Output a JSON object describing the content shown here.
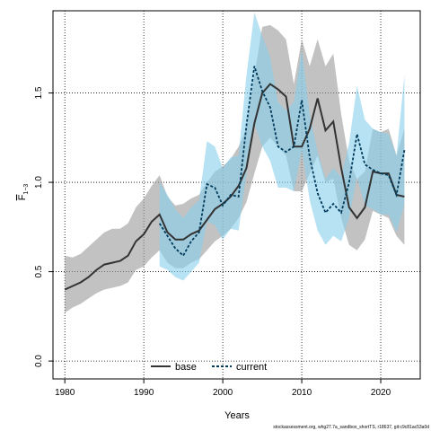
{
  "chart_data": {
    "type": "line",
    "xlabel": "Years",
    "ylabel_main": "F",
    "ylabel_sub": "1−3",
    "xlim": [
      1978.5,
      2025.0
    ],
    "ylim": [
      -0.1,
      1.96
    ],
    "x_ticks": [
      1980,
      1990,
      2000,
      2010,
      2020
    ],
    "y_ticks": [
      0.0,
      0.5,
      1.0,
      1.5
    ],
    "x_tick_labels": [
      "1980",
      "1990",
      "2000",
      "2010",
      "2020"
    ],
    "y_tick_labels": [
      "0.0",
      "0.5",
      "1.0",
      "1.5"
    ],
    "grid": true,
    "legend_position": "bottom",
    "footer": "stockassessment.org, whg27.7a_sandbox_shortTS, r18637, git:c9c81ac53a0d",
    "series": [
      {
        "name": "base",
        "color": "#333333",
        "band_color": "#999999",
        "dash": "solid",
        "x": [
          1980,
          1981,
          1982,
          1983,
          1984,
          1985,
          1986,
          1987,
          1988,
          1989,
          1990,
          1991,
          1992,
          1993,
          1994,
          1995,
          1996,
          1997,
          1998,
          1999,
          2000,
          2001,
          2002,
          2003,
          2004,
          2005,
          2006,
          2007,
          2008,
          2009,
          2010,
          2011,
          2012,
          2013,
          2014,
          2015,
          2016,
          2017,
          2018,
          2019,
          2020,
          2021,
          2022,
          2023
        ],
        "y": [
          0.4,
          0.42,
          0.44,
          0.47,
          0.51,
          0.54,
          0.55,
          0.56,
          0.59,
          0.67,
          0.71,
          0.78,
          0.82,
          0.72,
          0.68,
          0.68,
          0.71,
          0.73,
          0.79,
          0.85,
          0.88,
          0.92,
          0.98,
          1.08,
          1.33,
          1.5,
          1.55,
          1.52,
          1.48,
          1.2,
          1.2,
          1.3,
          1.47,
          1.29,
          1.34,
          1.08,
          0.86,
          0.8,
          0.86,
          1.06,
          1.05,
          1.05,
          0.93,
          0.92
        ],
        "lower": [
          0.27,
          0.3,
          0.32,
          0.35,
          0.38,
          0.4,
          0.41,
          0.42,
          0.44,
          0.51,
          0.53,
          0.58,
          0.62,
          0.55,
          0.52,
          0.52,
          0.55,
          0.57,
          0.62,
          0.67,
          0.7,
          0.74,
          0.8,
          0.89,
          1.05,
          1.2,
          1.25,
          1.2,
          1.15,
          0.95,
          0.95,
          1.05,
          1.15,
          1.0,
          1.02,
          0.8,
          0.65,
          0.62,
          0.68,
          0.84,
          0.82,
          0.8,
          0.7,
          0.65
        ],
        "upper": [
          0.59,
          0.58,
          0.6,
          0.64,
          0.68,
          0.72,
          0.74,
          0.74,
          0.77,
          0.86,
          0.91,
          0.98,
          1.04,
          0.92,
          0.87,
          0.88,
          0.91,
          0.93,
          1.0,
          1.06,
          1.09,
          1.13,
          1.2,
          1.3,
          1.6,
          1.87,
          1.88,
          1.85,
          1.8,
          1.55,
          1.8,
          1.65,
          1.8,
          1.65,
          1.72,
          1.38,
          1.12,
          1.02,
          1.06,
          1.3,
          1.28,
          1.3,
          1.15,
          1.3
        ]
      },
      {
        "name": "current",
        "color": "#003b5c",
        "band_color": "#87ceeb",
        "dash": "dashed",
        "x": [
          1992,
          1993,
          1994,
          1995,
          1996,
          1997,
          1998,
          1999,
          2000,
          2001,
          2002,
          2003,
          2004,
          2005,
          2006,
          2007,
          2008,
          2009,
          2010,
          2011,
          2012,
          2013,
          2014,
          2015,
          2016,
          2017,
          2018,
          2019,
          2020,
          2021,
          2022,
          2023
        ],
        "y": [
          0.77,
          0.7,
          0.63,
          0.59,
          0.67,
          0.72,
          0.99,
          0.97,
          0.87,
          0.93,
          0.92,
          1.32,
          1.65,
          1.51,
          1.42,
          1.2,
          1.17,
          1.2,
          1.46,
          1.14,
          0.94,
          0.83,
          0.88,
          0.83,
          1.0,
          1.27,
          1.1,
          1.07,
          1.05,
          1.04,
          0.93,
          1.18
        ],
        "lower": [
          0.53,
          0.51,
          0.47,
          0.45,
          0.5,
          0.55,
          0.78,
          0.76,
          0.68,
          0.74,
          0.73,
          1.05,
          1.33,
          1.2,
          1.12,
          0.97,
          0.97,
          0.95,
          1.18,
          0.9,
          0.73,
          0.65,
          0.7,
          0.67,
          0.8,
          1.03,
          0.87,
          0.85,
          0.82,
          0.82,
          0.72,
          0.88
        ],
        "upper": [
          1.0,
          0.93,
          0.85,
          0.8,
          0.86,
          0.9,
          1.23,
          1.2,
          1.08,
          1.14,
          1.15,
          1.6,
          1.95,
          1.82,
          1.7,
          1.45,
          1.4,
          1.45,
          1.74,
          1.38,
          1.17,
          1.02,
          1.08,
          1.03,
          1.22,
          1.54,
          1.35,
          1.3,
          1.28,
          1.27,
          1.15,
          1.6
        ]
      }
    ]
  }
}
